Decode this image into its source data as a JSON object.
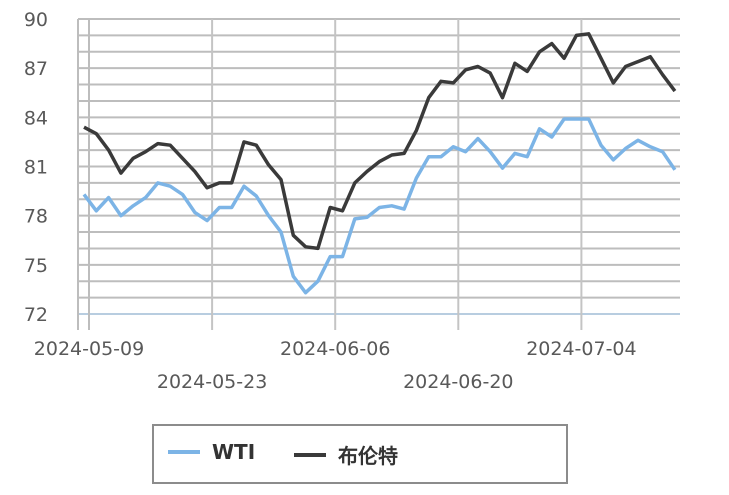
{
  "chart_data": {
    "type": "line",
    "title": "",
    "xlabel": "",
    "ylabel": "",
    "ylim": [
      72,
      90
    ],
    "yticks": [
      72,
      75,
      78,
      81,
      84,
      87,
      90
    ],
    "y_minor_grid_step": 1,
    "x_tick_labels": [
      "2024-05-09",
      "2024-05-23",
      "2024-06-06",
      "2024-06-20",
      "2024-07-04"
    ],
    "grid": true,
    "legend_position": "bottom",
    "series": [
      {
        "name": "WTI",
        "color": "#7cb4e6",
        "values": [
          79.3,
          78.3,
          79.1,
          78.0,
          78.6,
          79.1,
          80.0,
          79.8,
          79.3,
          78.2,
          77.7,
          78.5,
          78.5,
          79.8,
          79.2,
          78.0,
          77.0,
          74.3,
          73.3,
          74.0,
          75.5,
          75.5,
          77.8,
          77.9,
          78.5,
          78.6,
          78.4,
          80.3,
          81.6,
          81.6,
          82.2,
          81.9,
          82.7,
          81.9,
          80.9,
          81.8,
          81.6,
          83.3,
          82.8,
          83.9,
          83.9,
          83.9,
          82.3,
          81.4,
          82.1,
          82.6,
          82.2,
          81.9,
          80.8
        ]
      },
      {
        "name": "布伦特",
        "color": "#3a3a3a",
        "values": [
          83.4,
          83.0,
          82.0,
          80.6,
          81.5,
          81.9,
          82.4,
          82.3,
          81.5,
          80.7,
          79.7,
          80.0,
          80.0,
          82.5,
          82.3,
          81.1,
          80.2,
          76.8,
          76.1,
          76.0,
          78.5,
          78.3,
          80.0,
          80.7,
          81.3,
          81.7,
          81.8,
          83.2,
          85.2,
          86.2,
          86.1,
          86.9,
          87.1,
          86.7,
          85.2,
          87.3,
          86.8,
          88.0,
          88.5,
          87.6,
          89.0,
          89.1,
          87.6,
          86.1,
          87.1,
          87.4,
          87.7,
          86.6,
          85.6
        ]
      }
    ]
  }
}
